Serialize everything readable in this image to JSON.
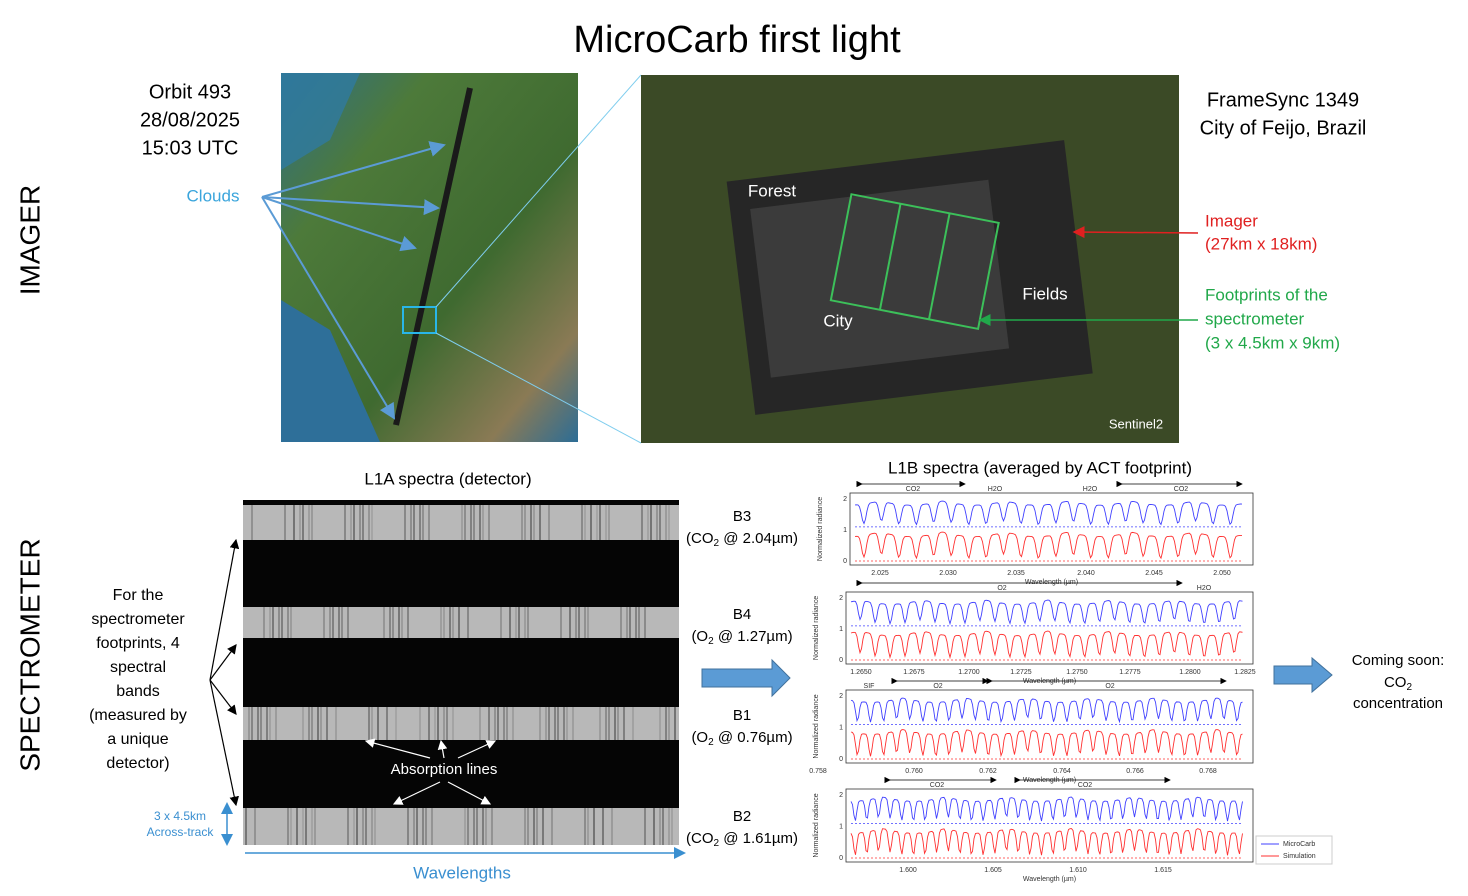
{
  "title": "MicroCarb first light",
  "section_labels": [
    "IMAGER",
    "SPECTROMETER"
  ],
  "imager": {
    "orbit": [
      "Orbit 493",
      "28/08/2025",
      "15:03 UTC"
    ],
    "clouds": "Clouds",
    "framesync": [
      "FrameSync 1349",
      "City of Feijo, Brazil"
    ],
    "imager_note": [
      "Imager",
      "(27km x 18km)"
    ],
    "footprint_note": [
      "Footprints of the",
      "spectrometer",
      "(3 x 4.5km x 9km)"
    ],
    "regions": [
      "Forest",
      "Fields",
      "City"
    ],
    "source": "Sentinel2"
  },
  "spectrometer": {
    "l1a_title": "L1A spectra (detector)",
    "description": [
      "For the",
      "spectrometer",
      "footprints, 4",
      "spectral",
      "bands",
      "(measured by",
      "a unique",
      "detector)"
    ],
    "across_track": [
      "3 x 4.5km",
      "Across-track"
    ],
    "wavelengths": "Wavelengths",
    "absorption": "Absorption lines",
    "bands": [
      {
        "name": "B3",
        "pre": "(CO",
        "sub": "2",
        "post": " @ 2.04µm)"
      },
      {
        "name": "B4",
        "pre": "(O",
        "sub": "2",
        "post": " @ 1.27µm)"
      },
      {
        "name": "B1",
        "pre": "(O",
        "sub": "2",
        "post": " @ 0.76µm)"
      },
      {
        "name": "B2",
        "pre": "(CO",
        "sub": "2",
        "post": " @ 1.61µm)"
      }
    ],
    "l1b_title": "L1B spectra (averaged by ACT footprint)",
    "y_label": "Normalized radiance",
    "x_label": "Wavelength (µm)",
    "yticks": [
      "0",
      "1",
      "2"
    ],
    "plots": [
      {
        "markers": [
          "CO2",
          "H2O",
          "H2O",
          "CO2"
        ],
        "xticks": [
          "2.025",
          "2.030",
          "2.035",
          "2.040",
          "2.045",
          "2.050"
        ]
      },
      {
        "markers": [
          "O2",
          "H2O"
        ],
        "xticks": [
          "1.2650",
          "1.2675",
          "1.2700",
          "1.2725",
          "1.2750",
          "1.2775",
          "1.2800",
          "1.2825"
        ]
      },
      {
        "markers": [
          "SIF",
          "O2",
          "O2"
        ],
        "xticks": [
          "0.758",
          "0.760",
          "0.762",
          "0.764",
          "0.766",
          "0.768"
        ]
      },
      {
        "markers": [
          "CO2",
          "CO2"
        ],
        "xticks": [
          "1.600",
          "1.605",
          "1.610",
          "1.615"
        ]
      }
    ],
    "legend": [
      "MicroCarb",
      "Simulation"
    ],
    "coming_soon": {
      "line1": "Coming soon:",
      "gas": "CO",
      "sub": "2",
      "line3": "concentration"
    }
  }
}
